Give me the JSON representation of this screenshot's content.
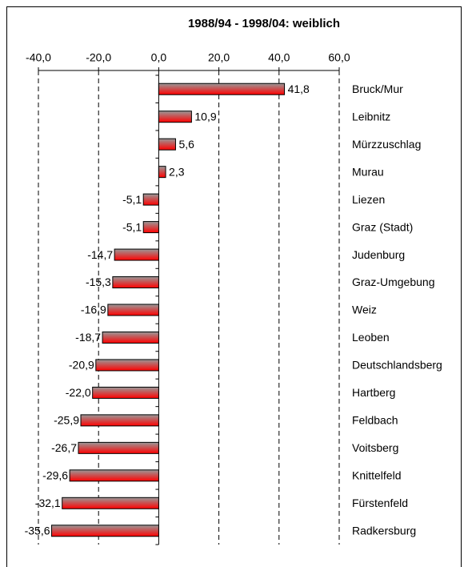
{
  "chart_data": {
    "type": "bar",
    "orientation": "horizontal",
    "title": "1988/94 - 1998/04: weiblich",
    "categories": [
      "Bruck/Mur",
      "Leibnitz",
      "Mürzzuschlag",
      "Murau",
      "Liezen",
      "Graz (Stadt)",
      "Judenburg",
      "Graz-Umgebung",
      "Weiz",
      "Leoben",
      "Deutschlandsberg",
      "Hartberg",
      "Feldbach",
      "Voitsberg",
      "Knittelfeld",
      "Fürstenfeld",
      "Radkersburg"
    ],
    "values": [
      41.8,
      10.9,
      5.6,
      2.3,
      -5.1,
      -5.1,
      -14.7,
      -15.3,
      -16.9,
      -18.7,
      -20.9,
      -22.0,
      -25.9,
      -26.7,
      -29.6,
      -32.1,
      -35.6
    ],
    "value_labels": [
      "41,8",
      "10,9",
      "5,6",
      "2,3",
      "-5,1",
      "-5,1",
      "-14,7",
      "-15,3",
      "-16,9",
      "-18,7",
      "-20,9",
      "-22,0",
      "-25,9",
      "-26,7",
      "-29,6",
      "-32,1",
      "-35,6"
    ],
    "color": "#ff0000",
    "xlim": [
      -40,
      60
    ],
    "xticks": [
      {
        "value": -40,
        "label": "-40,0"
      },
      {
        "value": -20,
        "label": "-20,0"
      },
      {
        "value": 0,
        "label": "0,0"
      },
      {
        "value": 20,
        "label": "20,0"
      },
      {
        "value": 40,
        "label": "40,0"
      },
      {
        "value": 60,
        "label": "60,0"
      }
    ],
    "grid": true
  }
}
